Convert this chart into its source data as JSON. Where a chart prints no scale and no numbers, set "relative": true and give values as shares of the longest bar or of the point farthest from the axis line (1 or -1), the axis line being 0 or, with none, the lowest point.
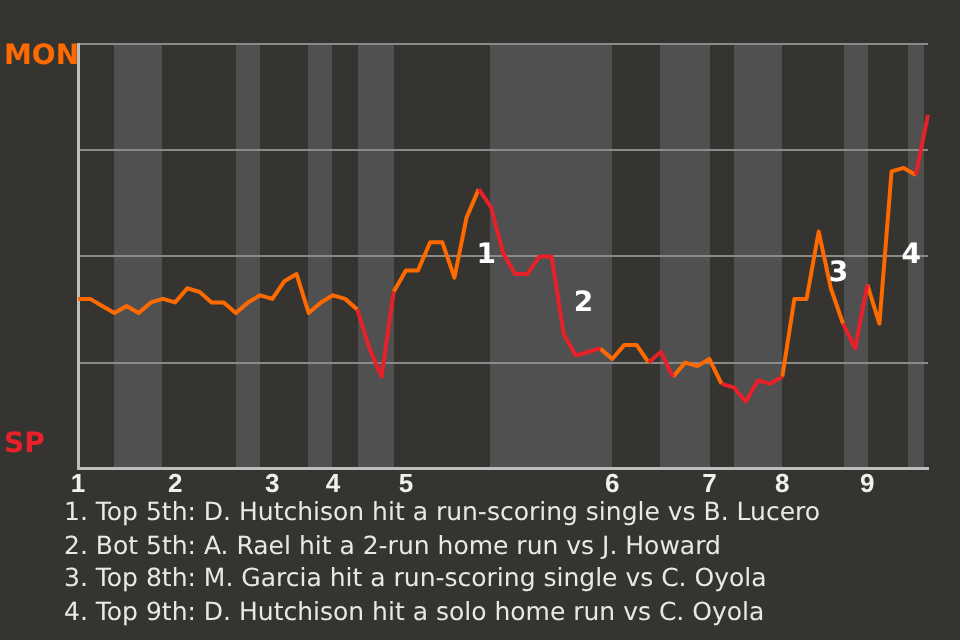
{
  "chart_data": {
    "type": "line",
    "relative": true,
    "categories": [
      "1",
      null,
      null,
      null,
      null,
      null,
      null,
      null,
      "2",
      null,
      null,
      null,
      null,
      null,
      null,
      null,
      "3",
      null,
      null,
      null,
      null,
      "4",
      null,
      null,
      null,
      null,
      null,
      "5",
      null,
      null,
      null,
      null,
      null,
      null,
      null,
      null,
      null,
      null,
      null,
      null,
      null,
      null,
      null,
      null,
      "6",
      null,
      null,
      null,
      null,
      null,
      null,
      null,
      "7",
      null,
      null,
      null,
      null,
      null,
      "8",
      null,
      null,
      null,
      null,
      null,
      null,
      "9",
      null,
      null,
      null,
      null,
      null
    ],
    "series": [
      {
        "color": "#ff6a00",
        "values": [
          0.48,
          0.48,
          0.46,
          0.44,
          0.46,
          0.44,
          0.47,
          0.48,
          0.47,
          0.51,
          0.5,
          0.47,
          0.47,
          0.44,
          0.47,
          0.49,
          0.48,
          0.53,
          0.55,
          0.44,
          0.47,
          0.49,
          0.48,
          0.45,
          null,
          null,
          0.5,
          0.56,
          0.56,
          0.64,
          0.64,
          0.54,
          0.71,
          0.79,
          null,
          null,
          null,
          null,
          null,
          null,
          null,
          null,
          null,
          0.34,
          0.31,
          0.35,
          0.35,
          0.3,
          null,
          0.26,
          0.3,
          0.29,
          0.31,
          0.24,
          null,
          null,
          null,
          null,
          0.26,
          0.48,
          0.48,
          0.67,
          0.51,
          0.41,
          null,
          0.52,
          0.41,
          0.84,
          0.85,
          0.83,
          null
        ]
      },
      {
        "color": "#e8202a",
        "values": [
          null,
          null,
          null,
          null,
          null,
          null,
          null,
          null,
          null,
          null,
          null,
          null,
          null,
          null,
          null,
          null,
          null,
          null,
          null,
          null,
          null,
          null,
          null,
          0.45,
          0.34,
          0.26,
          0.5,
          null,
          null,
          null,
          null,
          null,
          null,
          0.79,
          0.74,
          0.61,
          0.55,
          0.55,
          0.6,
          0.6,
          0.38,
          0.32,
          0.33,
          0.34,
          null,
          null,
          null,
          0.3,
          0.33,
          0.26,
          null,
          null,
          null,
          0.24,
          0.23,
          0.19,
          0.25,
          0.24,
          0.26,
          null,
          null,
          null,
          null,
          0.41,
          0.34,
          0.52,
          null,
          null,
          null,
          0.83,
          1
        ]
      }
    ],
    "grid": "y",
    "annotations": [
      "MON",
      "SP",
      "1",
      "2",
      "3",
      "4",
      "1. Top 5th: D. Hutchison hit a run-scoring single vs B. Lucero",
      "2. Bot 5th: A. Rael hit a 2-run home run vs J. Howard",
      "3. Top 8th: M. Garcia hit a run-scoring single vs C. Oyola",
      "4. Top 9th: D. Hutchison hit a solo home run vs C. Oyola"
    ]
  }
}
